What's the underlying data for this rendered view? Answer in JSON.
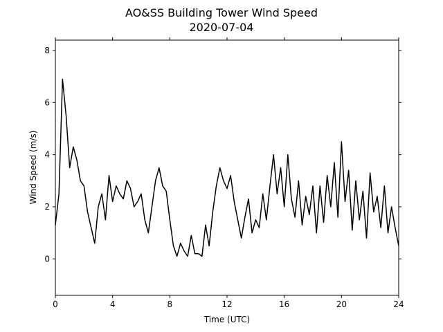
{
  "chart_data": {
    "type": "line",
    "title": "AO&SS Building Tower Wind Speed",
    "subtitle": "2020-07-04",
    "x_label": "Time (UTC)",
    "y_label": "Wind Speed (m/s)",
    "x": [
      0,
      0.25,
      0.5,
      0.75,
      1,
      1.25,
      1.5,
      1.75,
      2,
      2.25,
      2.5,
      2.75,
      3,
      3.25,
      3.5,
      3.75,
      4,
      4.25,
      4.5,
      4.75,
      5,
      5.25,
      5.5,
      5.75,
      6,
      6.25,
      6.5,
      6.75,
      7,
      7.25,
      7.5,
      7.75,
      8,
      8.25,
      8.5,
      8.75,
      9,
      9.25,
      9.5,
      9.75,
      10,
      10.25,
      10.5,
      10.75,
      11,
      11.25,
      11.5,
      11.75,
      12,
      12.25,
      12.5,
      12.75,
      13,
      13.25,
      13.5,
      13.75,
      14,
      14.25,
      14.5,
      14.75,
      15,
      15.25,
      15.5,
      15.75,
      16,
      16.25,
      16.5,
      16.75,
      17,
      17.25,
      17.5,
      17.75,
      18,
      18.25,
      18.5,
      18.75,
      19,
      19.25,
      19.5,
      19.75,
      20,
      20.25,
      20.5,
      20.75,
      21,
      21.25,
      21.5,
      21.75,
      22,
      22.25,
      22.5,
      22.75,
      23,
      23.25,
      23.5,
      23.75,
      24
    ],
    "series": [
      {
        "color": "#000000",
        "values": [
          1.3,
          2.5,
          6.9,
          5.5,
          3.5,
          4.3,
          3.8,
          3.0,
          2.8,
          1.8,
          1.2,
          0.6,
          2.0,
          2.5,
          1.5,
          3.2,
          2.2,
          2.8,
          2.5,
          2.3,
          3.0,
          2.7,
          2.0,
          2.2,
          2.5,
          1.5,
          1.0,
          2.0,
          3.0,
          3.5,
          2.8,
          2.6,
          1.5,
          0.5,
          0.1,
          0.6,
          0.3,
          0.1,
          0.9,
          0.2,
          0.2,
          0.1,
          1.3,
          0.5,
          1.8,
          2.8,
          3.5,
          3.0,
          2.7,
          3.2,
          2.2,
          1.5,
          0.8,
          1.6,
          2.3,
          1.0,
          1.5,
          1.2,
          2.5,
          1.5,
          2.8,
          4.0,
          2.5,
          3.5,
          2.0,
          4.0,
          2.3,
          1.6,
          3.0,
          1.3,
          2.4,
          1.7,
          2.8,
          1.0,
          2.8,
          1.4,
          3.2,
          2.0,
          3.7,
          1.6,
          4.5,
          2.2,
          3.4,
          1.1,
          3.0,
          1.5,
          2.6,
          0.8,
          3.3,
          1.8,
          2.4,
          1.2,
          2.8,
          1.0,
          2.0,
          1.2,
          0.5
        ]
      }
    ],
    "xlim": [
      0,
      24
    ],
    "xticks": [
      0,
      4,
      8,
      12,
      16,
      20,
      24
    ],
    "ylim": [
      -1.4,
      8.4
    ],
    "yticks": [
      0,
      2,
      4,
      6,
      8
    ]
  }
}
